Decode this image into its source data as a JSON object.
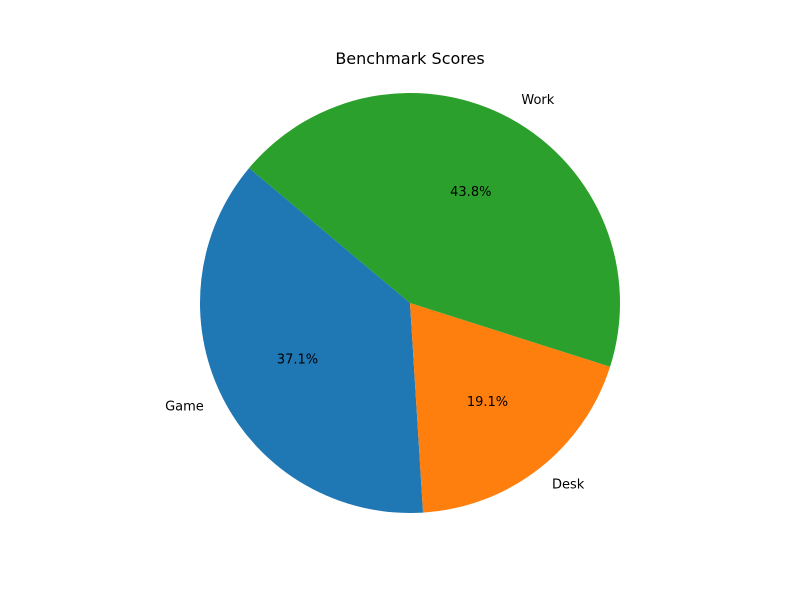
{
  "chart_data": {
    "type": "pie",
    "title": "Benchmark Scores",
    "start_angle_deg": 140,
    "direction": "counterclockwise",
    "slices": [
      {
        "label": "Game",
        "value": 37.1,
        "percent_label": "37.1%",
        "color": "#1f77b4"
      },
      {
        "label": "Desk",
        "value": 19.1,
        "percent_label": "19.1%",
        "color": "#ff7f0e"
      },
      {
        "label": "Work",
        "value": 43.8,
        "percent_label": "43.8%",
        "color": "#2ca02c"
      }
    ]
  }
}
